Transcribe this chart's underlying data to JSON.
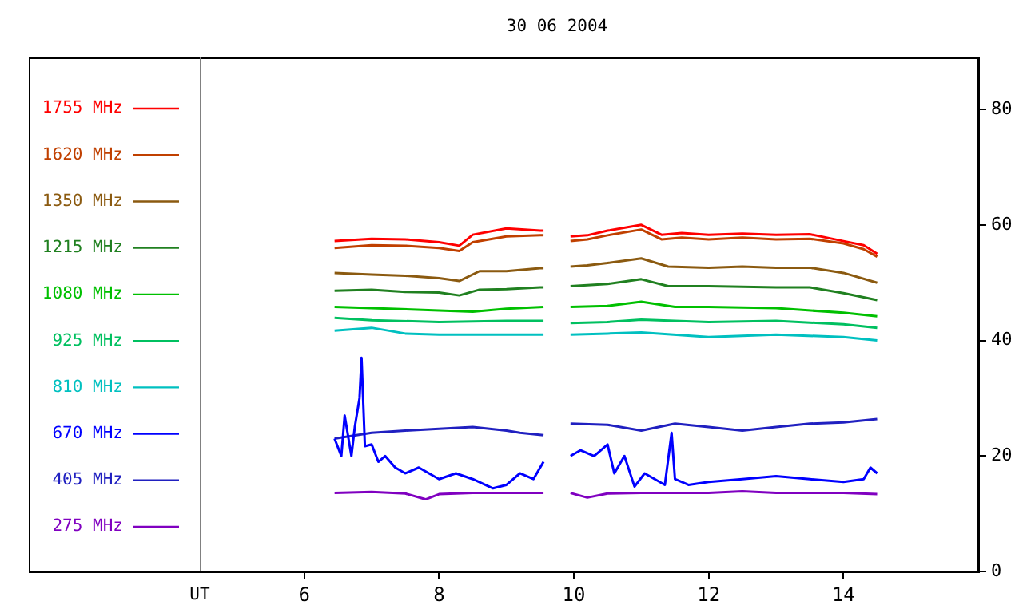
{
  "chart_data": {
    "type": "line",
    "title": "30 06 2004",
    "xlabel": "UT",
    "xlim": [
      4.45,
      16
    ],
    "xticks": [
      6,
      8,
      10,
      12,
      14
    ],
    "ylim": [
      0,
      89
    ],
    "yticks": [
      0,
      20,
      40,
      60,
      80
    ],
    "grid": false,
    "legend": "left",
    "marker": "none",
    "line_style": "solid",
    "series": [
      {
        "name": "1755 MHz",
        "color": "#ff0000",
        "x": [
          6.45,
          7,
          7.5,
          8,
          8.3,
          8.5,
          9,
          9.5,
          9.55,
          9.8,
          9.95,
          10.2,
          10.5,
          11,
          11.3,
          11.6,
          12,
          12.5,
          13,
          13.5,
          14,
          14.3,
          14.5
        ],
        "values": [
          57.2,
          57.6,
          57.5,
          57,
          56.4,
          58.3,
          59.4,
          59,
          59,
          null,
          58,
          58.2,
          59,
          60,
          58.3,
          58.6,
          58.3,
          58.5,
          58.3,
          58.4,
          57.2,
          56.5,
          55
        ]
      },
      {
        "name": "1620 MHz",
        "color": "#c04000",
        "x": [
          6.45,
          7,
          7.5,
          8,
          8.3,
          8.5,
          9,
          9.5,
          9.55,
          9.8,
          9.95,
          10.2,
          10.5,
          11,
          11.3,
          11.6,
          12,
          12.5,
          13,
          13.5,
          14,
          14.3,
          14.5
        ],
        "values": [
          56,
          56.5,
          56.4,
          56,
          55.5,
          57,
          58,
          58.2,
          58.2,
          null,
          57.2,
          57.5,
          58.2,
          59.2,
          57.5,
          57.8,
          57.5,
          57.8,
          57.5,
          57.6,
          56.8,
          55.8,
          54.5
        ]
      },
      {
        "name": "1350 MHz",
        "color": "#8b5a10",
        "x": [
          6.45,
          7,
          7.5,
          8,
          8.3,
          8.6,
          9,
          9.5,
          9.55,
          9.8,
          9.95,
          10.2,
          10.5,
          11,
          11.4,
          12,
          12.5,
          13,
          13.5,
          14,
          14.5
        ],
        "values": [
          51.7,
          51.4,
          51.2,
          50.8,
          50.3,
          52,
          52,
          52.5,
          52.5,
          null,
          52.8,
          53,
          53.4,
          54.2,
          52.8,
          52.6,
          52.8,
          52.6,
          52.6,
          51.7,
          50
        ]
      },
      {
        "name": "1215 MHz",
        "color": "#208020",
        "x": [
          6.45,
          7,
          7.5,
          8,
          8.3,
          8.6,
          9,
          9.5,
          9.55,
          9.8,
          9.95,
          10.5,
          11,
          11.4,
          12,
          13,
          13.5,
          14,
          14.5
        ],
        "values": [
          48.6,
          48.8,
          48.4,
          48.3,
          47.8,
          48.8,
          48.9,
          49.2,
          49.2,
          null,
          49.4,
          49.8,
          50.6,
          49.4,
          49.4,
          49.2,
          49.2,
          48.2,
          47
        ]
      },
      {
        "name": "1080 MHz",
        "color": "#00c000",
        "x": [
          6.45,
          7,
          8,
          8.5,
          9,
          9.55,
          9.8,
          9.95,
          10.5,
          11,
          11.5,
          12,
          13,
          14,
          14.5
        ],
        "values": [
          45.8,
          45.6,
          45.2,
          45,
          45.5,
          45.8,
          null,
          45.8,
          46,
          46.7,
          45.8,
          45.8,
          45.6,
          44.8,
          44.2
        ]
      },
      {
        "name": "925 MHz",
        "color": "#00c060",
        "x": [
          6.45,
          7,
          8,
          9,
          9.55,
          9.8,
          9.95,
          10.5,
          11,
          12,
          13,
          14,
          14.5
        ],
        "values": [
          43.9,
          43.5,
          43.2,
          43.4,
          43.4,
          null,
          43,
          43.2,
          43.6,
          43.2,
          43.4,
          42.8,
          42.2
        ]
      },
      {
        "name": "810 MHz",
        "color": "#00c0c0",
        "x": [
          6.45,
          7,
          7.5,
          8,
          9,
          9.55,
          9.8,
          9.95,
          10.5,
          11,
          12,
          13,
          14,
          14.5
        ],
        "values": [
          41.7,
          42.2,
          41.2,
          41,
          41,
          41,
          null,
          41,
          41.2,
          41.4,
          40.6,
          41,
          40.6,
          40
        ]
      },
      {
        "name": "670 MHz",
        "color": "#0000ff",
        "x": [
          6.45,
          6.55,
          6.6,
          6.7,
          6.75,
          6.82,
          6.85,
          6.9,
          7,
          7.1,
          7.2,
          7.35,
          7.5,
          7.7,
          8,
          8.25,
          8.5,
          8.8,
          9,
          9.2,
          9.4,
          9.55,
          9.8,
          9.95,
          10.1,
          10.3,
          10.5,
          10.6,
          10.75,
          10.9,
          11.05,
          11.2,
          11.35,
          11.45,
          11.5,
          11.7,
          12,
          12.5,
          13,
          13.5,
          14,
          14.3,
          14.4,
          14.5
        ],
        "values": [
          23,
          20,
          27,
          20,
          25,
          30,
          37,
          21.7,
          22,
          19,
          20,
          18,
          17,
          18,
          16,
          17,
          16,
          14.4,
          15,
          17,
          16,
          19,
          null,
          20,
          21,
          20,
          22,
          17,
          20,
          14.7,
          17,
          16,
          15,
          24,
          16,
          15,
          15.5,
          16,
          16.5,
          16,
          15.5,
          16,
          18,
          17
        ]
      },
      {
        "name": "405 MHz",
        "color": "#2020c0",
        "x": [
          6.45,
          7,
          7.5,
          8,
          8.5,
          9,
          9.2,
          9.55,
          9.8,
          9.95,
          10.5,
          11,
          11.5,
          12,
          12.5,
          13,
          13.5,
          14,
          14.5
        ],
        "values": [
          23,
          24,
          24.4,
          24.7,
          25,
          24.4,
          24,
          23.6,
          null,
          25.6,
          25.4,
          24.4,
          25.6,
          25,
          24.4,
          25,
          25.6,
          25.8,
          26.4
        ]
      },
      {
        "name": "275 MHz",
        "color": "#8000c0",
        "x": [
          6.45,
          7,
          7.5,
          7.8,
          8,
          8.5,
          9,
          9.55,
          9.8,
          9.95,
          10.2,
          10.5,
          11,
          11.5,
          12,
          12.5,
          13,
          13.5,
          14,
          14.5
        ],
        "values": [
          13.6,
          13.8,
          13.5,
          12.5,
          13.4,
          13.6,
          13.6,
          13.6,
          null,
          13.6,
          12.8,
          13.5,
          13.6,
          13.6,
          13.6,
          13.9,
          13.6,
          13.6,
          13.6,
          13.4
        ]
      }
    ]
  }
}
